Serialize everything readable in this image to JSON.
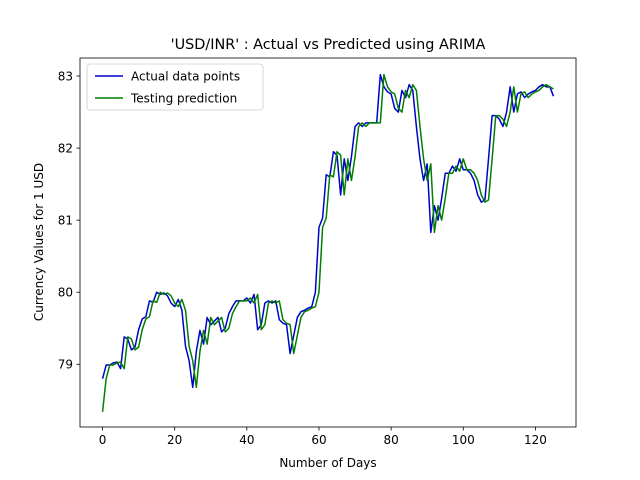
{
  "chart_data": {
    "type": "line",
    "title": "'USD/INR' : Actual vs Predicted using ARIMA",
    "xlabel": "Number of Days",
    "ylabel": "Currency Values for 1 USD",
    "xlim": [
      -6.25,
      131.25
    ],
    "ylim": [
      78.13,
      83.25
    ],
    "xticks": [
      0,
      20,
      40,
      60,
      80,
      100,
      120
    ],
    "yticks": [
      79,
      80,
      81,
      82,
      83
    ],
    "grid": false,
    "legend_position": "top-left",
    "series": [
      {
        "name": "Actual data points",
        "color": "#0000cc",
        "values": [
          78.8,
          78.99,
          78.99,
          79.02,
          79.03,
          78.94,
          79.38,
          79.35,
          79.2,
          79.24,
          79.48,
          79.63,
          79.66,
          79.88,
          79.86,
          80.0,
          79.97,
          79.99,
          79.95,
          79.85,
          79.8,
          79.9,
          79.75,
          79.25,
          79.05,
          78.68,
          79.18,
          79.47,
          79.28,
          79.65,
          79.55,
          79.6,
          79.65,
          79.45,
          79.5,
          79.7,
          79.8,
          79.88,
          79.88,
          79.88,
          79.92,
          79.85,
          79.97,
          79.48,
          79.55,
          79.85,
          79.88,
          79.85,
          79.88,
          79.62,
          79.57,
          79.55,
          79.15,
          79.4,
          79.65,
          79.73,
          79.75,
          79.78,
          79.8,
          80.0,
          80.9,
          81.03,
          81.63,
          81.6,
          81.95,
          81.9,
          81.35,
          81.85,
          81.55,
          81.88,
          82.3,
          82.35,
          82.3,
          82.35,
          82.35,
          82.35,
          82.35,
          83.02,
          82.85,
          82.78,
          82.75,
          82.55,
          82.5,
          82.8,
          82.7,
          82.88,
          82.8,
          82.3,
          81.85,
          81.55,
          81.78,
          80.83,
          81.2,
          81.0,
          81.3,
          81.65,
          81.65,
          81.75,
          81.68,
          81.85,
          81.7,
          81.7,
          81.65,
          81.55,
          81.35,
          81.25,
          81.28,
          81.85,
          82.45,
          82.45,
          82.4,
          82.3,
          82.5,
          82.85,
          82.5,
          82.75,
          82.78,
          82.7,
          82.75,
          82.78,
          82.8,
          82.85,
          82.88,
          82.85,
          82.85,
          82.72
        ]
      },
      {
        "name": "Testing prediction",
        "color": "#008000",
        "values": [
          78.34,
          78.8,
          78.99,
          78.99,
          79.02,
          79.03,
          78.94,
          79.38,
          79.35,
          79.2,
          79.24,
          79.48,
          79.63,
          79.66,
          79.88,
          79.86,
          80.0,
          79.97,
          79.99,
          79.95,
          79.85,
          79.8,
          79.9,
          79.75,
          79.25,
          79.05,
          78.68,
          79.18,
          79.47,
          79.28,
          79.65,
          79.55,
          79.6,
          79.65,
          79.45,
          79.5,
          79.7,
          79.8,
          79.88,
          79.88,
          79.88,
          79.92,
          79.85,
          79.97,
          79.48,
          79.55,
          79.85,
          79.88,
          79.85,
          79.88,
          79.62,
          79.57,
          79.55,
          79.15,
          79.4,
          79.65,
          79.73,
          79.75,
          79.78,
          79.8,
          80.0,
          80.9,
          81.03,
          81.63,
          81.6,
          81.95,
          81.9,
          81.35,
          81.85,
          81.55,
          81.88,
          82.3,
          82.35,
          82.3,
          82.35,
          82.35,
          82.35,
          82.35,
          83.02,
          82.85,
          82.78,
          82.75,
          82.55,
          82.5,
          82.8,
          82.7,
          82.88,
          82.8,
          82.3,
          81.85,
          81.55,
          81.78,
          80.83,
          81.2,
          81.0,
          81.3,
          81.65,
          81.65,
          81.75,
          81.68,
          81.85,
          81.7,
          81.7,
          81.65,
          81.55,
          81.35,
          81.25,
          81.28,
          81.85,
          82.45,
          82.45,
          82.4,
          82.3,
          82.5,
          82.85,
          82.5,
          82.75,
          82.78,
          82.7,
          82.75,
          82.78,
          82.8,
          82.85,
          82.88,
          82.85,
          82.82
        ]
      }
    ]
  }
}
